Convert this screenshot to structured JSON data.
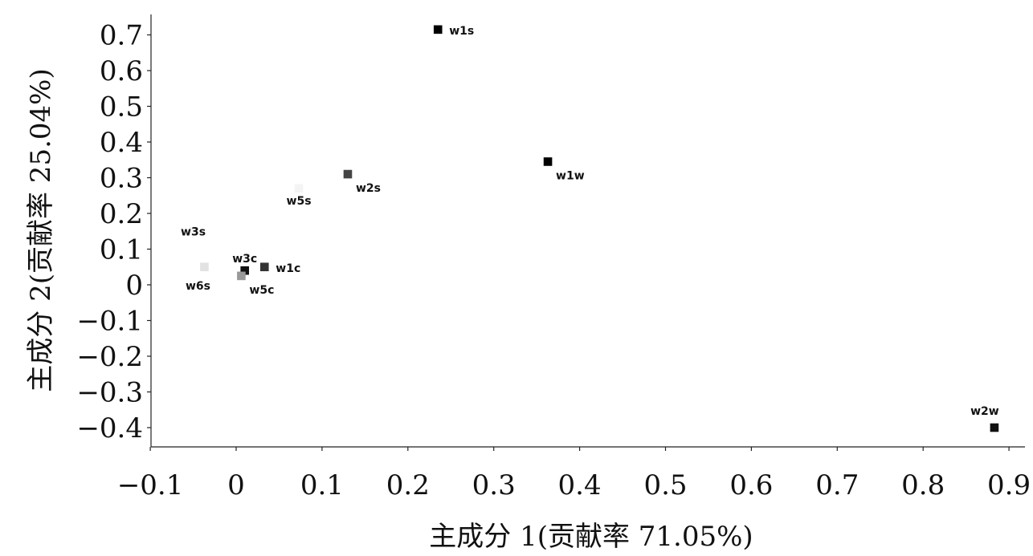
{
  "chart_data": {
    "type": "scatter",
    "title": "",
    "xlabel": "主成分 1(贡献率 71.05%)",
    "ylabel": "主成分 2(贡献率 25.04%)",
    "xlim": [
      -0.1,
      0.9
    ],
    "ylim": [
      -0.4,
      0.7
    ],
    "grid": false,
    "x_ticks": [
      -0.1,
      0,
      0.1,
      0.2,
      0.3,
      0.4,
      0.5,
      0.6,
      0.7,
      0.8,
      0.9
    ],
    "x_tick_labels": [
      "−0.1",
      "0",
      "0.1",
      "0.2",
      "0.3",
      "0.4",
      "0.5",
      "0.6",
      "0.7",
      "0.8",
      "0.9"
    ],
    "y_ticks": [
      0.7,
      0.6,
      0.5,
      0.4,
      0.3,
      0.2,
      0.1,
      0,
      -0.1,
      -0.2,
      -0.3,
      -0.4
    ],
    "y_tick_labels": [
      "0.7",
      "0.6",
      "0.5",
      "0.4",
      "0.3",
      "0.2",
      "0.1",
      "0",
      "−0.1",
      "−0.2",
      "−0.3",
      "−0.4"
    ],
    "points": [
      {
        "label": "w1s",
        "x": 0.235,
        "y": 0.715,
        "color": "#000000",
        "label_pos": "right"
      },
      {
        "label": "w1w",
        "x": 0.363,
        "y": 0.345,
        "color": "#000000",
        "label_pos": "below-right"
      },
      {
        "label": "w2s",
        "x": 0.13,
        "y": 0.31,
        "color": "#444444",
        "label_pos": "below-right"
      },
      {
        "label": "w5s",
        "x": 0.073,
        "y": 0.27,
        "color": "#f4f4f4",
        "label_pos": "below"
      },
      {
        "label": "w3s",
        "x": -0.05,
        "y": 0.15,
        "color": "#f4f4f4",
        "label_pos": "center"
      },
      {
        "label": "w3c",
        "x": 0.01,
        "y": 0.04,
        "color": "#111111",
        "label_pos": "above"
      },
      {
        "label": "w1c",
        "x": 0.033,
        "y": 0.05,
        "color": "#333333",
        "label_pos": "right"
      },
      {
        "label": "w5c",
        "x": 0.006,
        "y": 0.025,
        "color": "#999999",
        "label_pos": "below-right"
      },
      {
        "label": "w6s",
        "x": -0.037,
        "y": 0.05,
        "color": "#e2e2e2",
        "label_pos": "below-left"
      },
      {
        "label": "w2w",
        "x": 0.883,
        "y": -0.4,
        "color": "#111111",
        "label_pos": "above-left"
      }
    ]
  }
}
